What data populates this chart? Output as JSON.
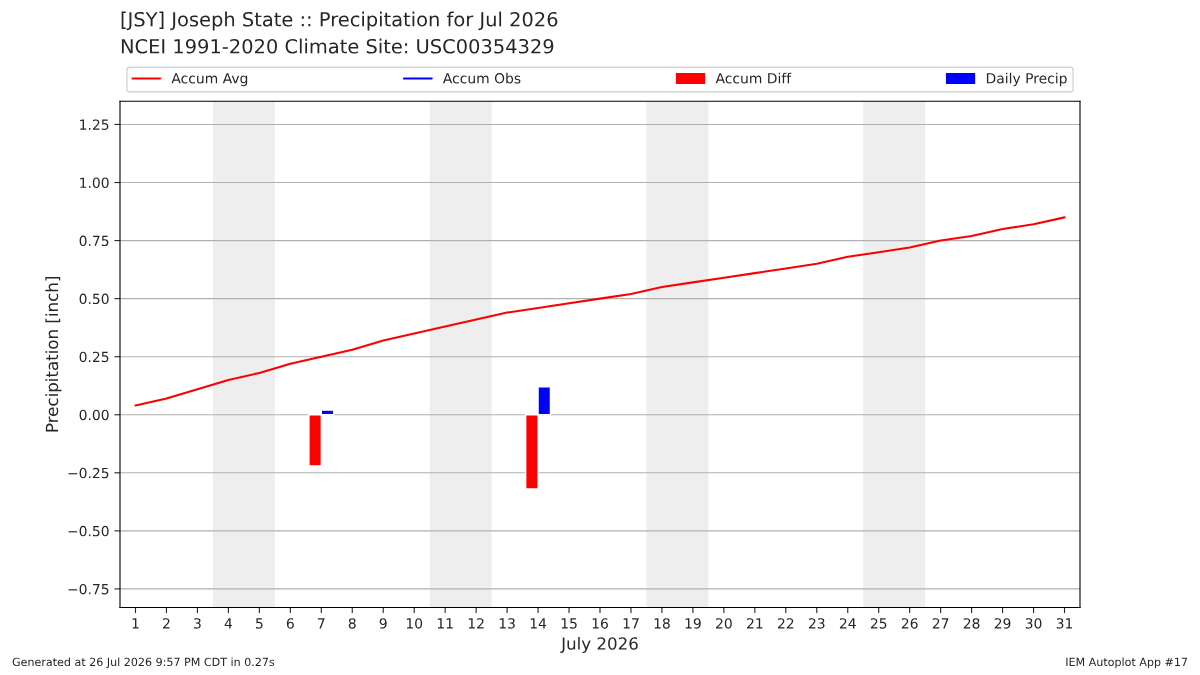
{
  "chart_data": {
    "type": "line",
    "title": "[JSY] Joseph State :: Precipitation for Jul 2026",
    "subtitle": "NCEI 1991-2020 Climate Site: USC00354329",
    "xlabel": "July 2026",
    "ylabel": "Precipitation [inch]",
    "x": [
      1,
      2,
      3,
      4,
      5,
      6,
      7,
      8,
      9,
      10,
      11,
      12,
      13,
      14,
      15,
      16,
      17,
      18,
      19,
      20,
      21,
      22,
      23,
      24,
      25,
      26,
      27,
      28,
      29,
      30,
      31
    ],
    "series": [
      {
        "name": "Accum Avg",
        "color": "#ff0000",
        "values": [
          0.04,
          0.07,
          0.11,
          0.15,
          0.18,
          0.22,
          0.25,
          0.28,
          0.32,
          0.35,
          0.38,
          0.41,
          0.44,
          0.46,
          0.48,
          0.5,
          0.52,
          0.55,
          0.57,
          0.59,
          0.61,
          0.63,
          0.65,
          0.68,
          0.7,
          0.72,
          0.75,
          0.77,
          0.8,
          0.82,
          0.85
        ]
      },
      {
        "name": "Accum Obs",
        "color": "#0000ff",
        "values": [
          null,
          null,
          null,
          null,
          null,
          null,
          null,
          null,
          null,
          null,
          null,
          null,
          null,
          null,
          null,
          null,
          null,
          null,
          null,
          null,
          null,
          null,
          null,
          null,
          null,
          null,
          null,
          null,
          null,
          null,
          null
        ]
      },
      {
        "name": "Accum Diff",
        "type": "bar",
        "color": "#ff0000",
        "values": [
          null,
          null,
          null,
          null,
          null,
          null,
          -0.22,
          null,
          null,
          null,
          null,
          null,
          null,
          -0.32,
          null,
          null,
          null,
          null,
          null,
          null,
          null,
          null,
          null,
          null,
          null,
          null,
          null,
          null,
          null,
          null,
          null
        ]
      },
      {
        "name": "Daily Precip",
        "type": "bar",
        "color": "#0000ff",
        "values": [
          null,
          null,
          null,
          null,
          null,
          null,
          0.02,
          null,
          null,
          null,
          null,
          null,
          null,
          0.12,
          null,
          null,
          null,
          null,
          null,
          null,
          null,
          null,
          null,
          null,
          null,
          null,
          null,
          null,
          null,
          null,
          null
        ]
      }
    ],
    "xlim": [
      0.5,
      31.5
    ],
    "xticks": [
      1,
      2,
      3,
      4,
      5,
      6,
      7,
      8,
      9,
      10,
      11,
      12,
      13,
      14,
      15,
      16,
      17,
      18,
      19,
      20,
      21,
      22,
      23,
      24,
      25,
      26,
      27,
      28,
      29,
      30,
      31
    ],
    "ylim": [
      -0.83,
      1.35
    ],
    "yticks": [
      {
        "value": -0.75,
        "label": "−0.75"
      },
      {
        "value": -0.5,
        "label": "−0.50"
      },
      {
        "value": -0.25,
        "label": "−0.25"
      },
      {
        "value": 0,
        "label": "0.00"
      },
      {
        "value": 0.25,
        "label": "0.25"
      },
      {
        "value": 0.5,
        "label": "0.50"
      },
      {
        "value": 0.75,
        "label": "0.75"
      },
      {
        "value": 1.0,
        "label": "1.00"
      },
      {
        "value": 1.25,
        "label": "1.25"
      }
    ],
    "bands": [
      {
        "axis": "x",
        "from": 3.5,
        "to": 5.5,
        "color": "#eeeeee"
      },
      {
        "axis": "x",
        "from": 10.5,
        "to": 12.5,
        "color": "#eeeeee"
      },
      {
        "axis": "x",
        "from": 17.5,
        "to": 19.5,
        "color": "#eeeeee"
      },
      {
        "axis": "x",
        "from": 24.5,
        "to": 26.5,
        "color": "#eeeeee"
      }
    ],
    "grid": "y",
    "legend": "top",
    "annotations": [
      "Generated at 26 Jul 2026 9:57 PM CDT in 0.27s",
      "IEM Autoplot App #17"
    ]
  }
}
